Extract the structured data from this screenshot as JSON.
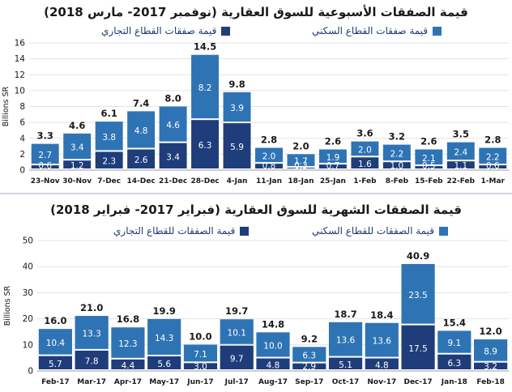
{
  "colors": {
    "commercial": "#1f3d7a",
    "residential": "#2e74b5",
    "text": "#1a1a1a",
    "grid": "#e3e3e3"
  },
  "chart_data": [
    {
      "type": "bar",
      "stacked": true,
      "title": "قيمة الصفقات الأسبوعية للسوق العقارية (نوفمبر 2017- مارس 2018)",
      "ylabel": "Billions SR",
      "ylim": [
        0,
        16
      ],
      "yticks": [
        0,
        2,
        4,
        6,
        8,
        10,
        12,
        14,
        16
      ],
      "categories": [
        "23-Nov",
        "30-Nov",
        "7-Dec",
        "14-Dec",
        "21-Dec",
        "28-Dec",
        "4-Jan",
        "11-Jan",
        "18-Jan",
        "25-Jan",
        "1-Feb",
        "8-Feb",
        "15-Feb",
        "22-Feb",
        "1-Mar"
      ],
      "series": [
        {
          "name": "قيمة صفقات القطاع التجاري",
          "values": [
            0.6,
            1.2,
            2.3,
            2.6,
            3.4,
            6.3,
            5.9,
            0.8,
            0.3,
            0.7,
            1.6,
            1.0,
            0.5,
            1.1,
            0.6
          ]
        },
        {
          "name": "قيمة صفقات القطاع السكني",
          "values": [
            2.7,
            3.4,
            3.8,
            4.8,
            4.6,
            8.2,
            3.9,
            2.0,
            1.7,
            1.9,
            2.0,
            2.2,
            2.1,
            2.4,
            2.2
          ]
        }
      ],
      "totals": [
        3.3,
        4.6,
        6.1,
        7.4,
        8.0,
        14.5,
        9.8,
        2.8,
        2.0,
        2.6,
        3.6,
        3.2,
        2.6,
        3.5,
        2.8
      ]
    },
    {
      "type": "bar",
      "stacked": true,
      "title": "قيمة الصفقات الشهرية للسوق العقارية (فبراير 2017- فبراير 2018)",
      "ylabel": "Billions SR",
      "ylim": [
        0,
        50
      ],
      "yticks": [
        0,
        10,
        20,
        30,
        40,
        50
      ],
      "categories": [
        "Feb-17",
        "Mar-17",
        "Apr-17",
        "May-17",
        "Jun-17",
        "Jul-17",
        "Aug-17",
        "Sep-17",
        "Oct-17",
        "Nov-17",
        "Dec-17",
        "Jan-18",
        "Feb-18"
      ],
      "series": [
        {
          "name": "قيمة الصفقات للقطاع التجاري",
          "values": [
            5.7,
            7.8,
            4.4,
            5.6,
            3.0,
            9.7,
            4.8,
            2.9,
            5.1,
            4.8,
            17.5,
            6.3,
            3.2
          ]
        },
        {
          "name": "قيمة الصفقات للقطاع السكني",
          "values": [
            10.4,
            13.3,
            12.3,
            14.3,
            7.1,
            10.1,
            10.0,
            6.3,
            13.6,
            13.6,
            23.5,
            9.1,
            8.9
          ]
        }
      ],
      "totals": [
        16.0,
        21.0,
        16.8,
        19.9,
        10.0,
        19.7,
        14.8,
        9.2,
        18.7,
        18.4,
        40.9,
        15.4,
        12.0
      ]
    }
  ]
}
